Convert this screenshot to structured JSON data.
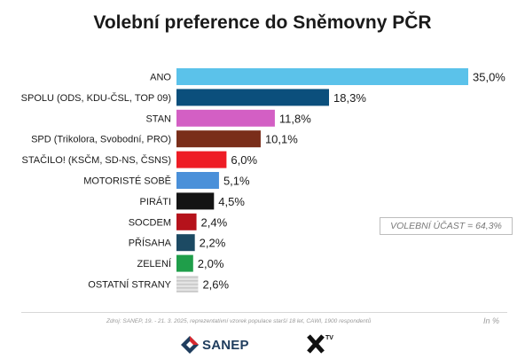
{
  "chart_data": {
    "type": "bar",
    "orientation": "horizontal",
    "title": "Volební preference do Sněmovny PČR",
    "categories": [
      "ANO",
      "SPOLU (ODS, KDU-ČSL, TOP 09)",
      "STAN",
      "SPD (Trikolora, Svobodní, PRO)",
      "STAČILO! (KSČM, SD-NS, ČSNS)",
      "MOTORISTÉ SOBĚ",
      "PIRÁTI",
      "SOCDEM",
      "PŘÍSAHA",
      "ZELENÍ",
      "OSTATNÍ STRANY"
    ],
    "values": [
      35.0,
      18.3,
      11.8,
      10.1,
      6.0,
      5.1,
      4.5,
      2.4,
      2.2,
      2.0,
      2.6
    ],
    "value_labels": [
      "35,0%",
      "18,3%",
      "11,8%",
      "10,1%",
      "6,0%",
      "5,1%",
      "4,5%",
      "2,4%",
      "2,2%",
      "2,0%",
      "2,6%"
    ],
    "colors": [
      "#5bc2ea",
      "#0b4f7c",
      "#d35fc4",
      "#7a2e1a",
      "#ee1c25",
      "#4a90d9",
      "#141414",
      "#b5121b",
      "#1c4a63",
      "#1f9e4a",
      "striped-grey"
    ],
    "xlim": [
      0,
      35
    ],
    "grid": false,
    "legend": "none"
  },
  "turnout": "VOLEBNÍ ÚČAST = 64,3%",
  "source_note": "Zdroj: SANEP, 19. - 21. 3. 2025, reprezentativní vzorek populace starší 18 let, CAWI, 1900 respondentů",
  "unit_note": "In %",
  "logos": {
    "sanep": "SANEP",
    "xtv_small": "TV"
  }
}
